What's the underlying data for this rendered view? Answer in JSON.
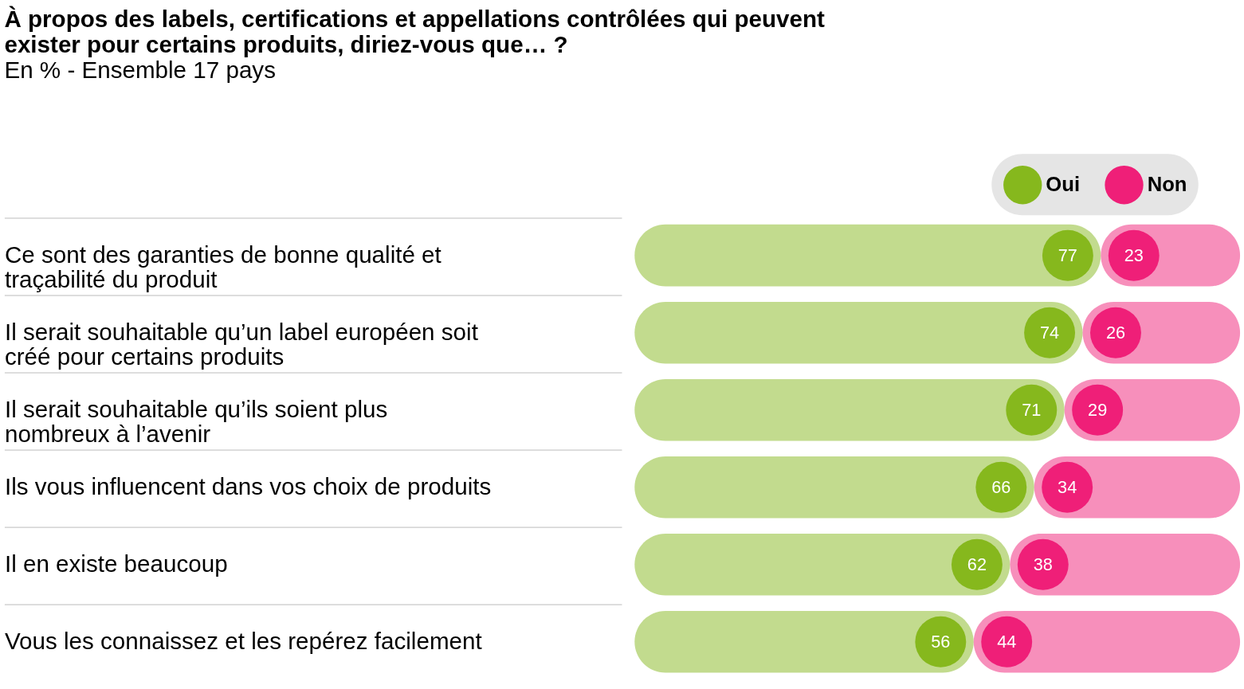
{
  "chart_data": {
    "type": "bar",
    "orientation": "horizontal",
    "stacked": true,
    "data_labels": true,
    "legend": "top right",
    "grid": false,
    "tick_labels": "y",
    "title": "À propos des labels, certifications et appellations contrôlées qui peuvent exister pour certains produits, diriez-vous que… ?",
    "subtitle": "En % - Ensemble 17 pays",
    "categories": [
      "Ce sont des garanties de bonne qualité et traçabilité du produit",
      "Il serait souhaitable qu’un label européen soit créé pour certains produits",
      "Il serait souhaitable qu’ils soient plus nombreux à l’avenir",
      "Ils vous influencent dans vos choix de produits",
      "Il en existe beaucoup",
      "Vous les connaissez et les repérez facilement"
    ],
    "series": [
      {
        "name": "Oui",
        "color": "#86b81d",
        "values": [
          77,
          74,
          71,
          66,
          62,
          56
        ]
      },
      {
        "name": "Non",
        "color": "#ef1f78",
        "values": [
          23,
          26,
          29,
          34,
          38,
          44
        ]
      }
    ]
  }
}
